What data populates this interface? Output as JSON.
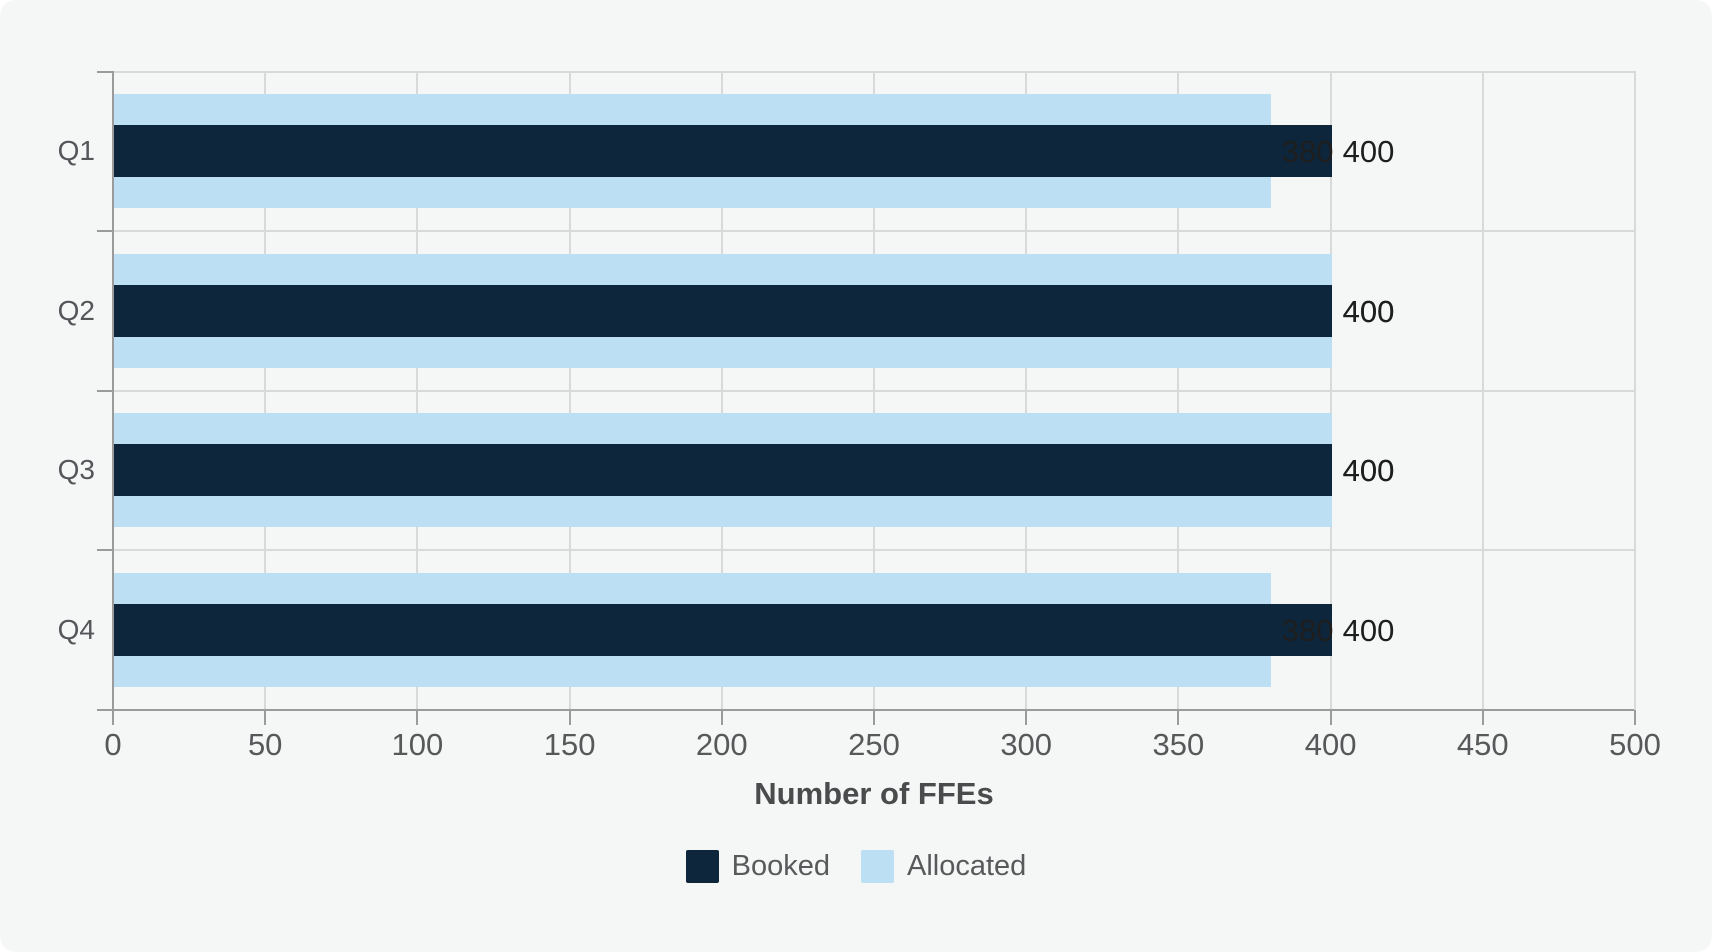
{
  "chart_data": {
    "type": "bar",
    "orientation": "horizontal",
    "categories": [
      "Q1",
      "Q2",
      "Q3",
      "Q4"
    ],
    "series": [
      {
        "name": "Booked",
        "color": "#0d263c",
        "values": [
          400,
          400,
          400,
          400
        ]
      },
      {
        "name": "Allocated",
        "color": "#bcdff3",
        "values": [
          380,
          400,
          400,
          380
        ]
      }
    ],
    "title": "",
    "xlabel": "Number of FFEs",
    "ylabel": "",
    "xlim": [
      0,
      500
    ],
    "xticks": [
      0,
      50,
      100,
      150,
      200,
      250,
      300,
      350,
      400,
      450,
      500
    ],
    "grid": true,
    "value_labels": true,
    "legend_position": "bottom"
  },
  "colors": {
    "card_background": "#f5f6f6",
    "page_background": "#ffffff",
    "gridline": "#d9d9d9",
    "axis_line": "#9b9b9b",
    "tick_label": "#58585a",
    "category_label": "#55565a",
    "value_label": "#1e1e1e",
    "axis_title": "#4a4b4d",
    "legend_text": "#58595b"
  }
}
